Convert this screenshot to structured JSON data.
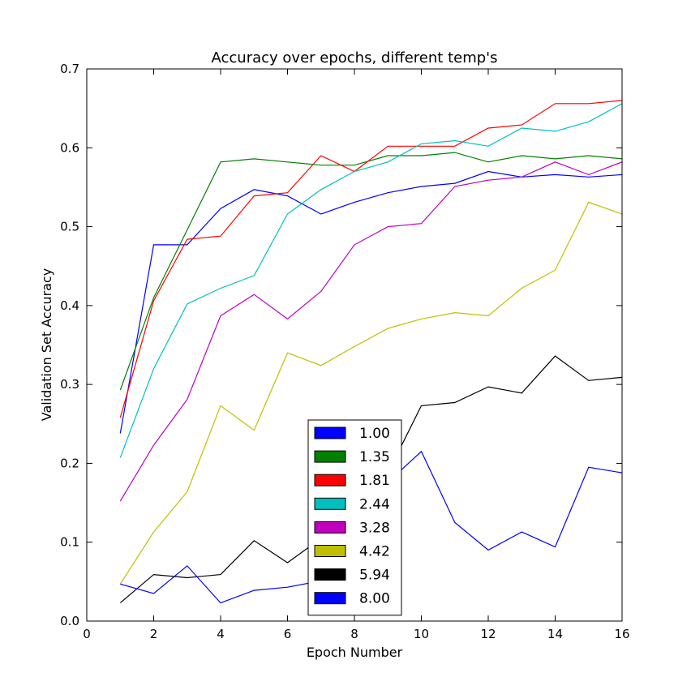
{
  "chart_data": {
    "type": "line",
    "title": "Accuracy over epochs, different temp's",
    "xlabel": "Epoch Number",
    "ylabel": "Validation Set Accuracy",
    "xlim": [
      0,
      16
    ],
    "ylim": [
      0.0,
      0.7
    ],
    "xticks": [
      "0",
      "2",
      "4",
      "6",
      "8",
      "10",
      "12",
      "14",
      "16"
    ],
    "yticks": [
      "0.0",
      "0.1",
      "0.2",
      "0.3",
      "0.4",
      "0.5",
      "0.6",
      "0.7"
    ],
    "grid": false,
    "legend_position": "lower-center",
    "x": [
      1,
      2,
      3,
      4,
      5,
      6,
      7,
      8,
      9,
      10,
      11,
      12,
      13,
      14,
      15,
      16
    ],
    "series": [
      {
        "name": "1.00",
        "color": "#0000ff",
        "values": [
          0.238,
          0.477,
          0.477,
          0.523,
          0.547,
          0.539,
          0.516,
          0.531,
          0.543,
          0.551,
          0.555,
          0.57,
          0.563,
          0.566,
          0.563,
          0.566
        ]
      },
      {
        "name": "1.35",
        "color": "#008000",
        "values": [
          0.293,
          0.41,
          0.496,
          0.582,
          0.586,
          0.582,
          0.578,
          0.578,
          0.59,
          0.59,
          0.594,
          0.582,
          0.59,
          0.586,
          0.59,
          0.586
        ]
      },
      {
        "name": "1.81",
        "color": "#ff0000",
        "values": [
          0.258,
          0.406,
          0.484,
          0.488,
          0.539,
          0.543,
          0.59,
          0.57,
          0.602,
          0.602,
          0.602,
          0.625,
          0.629,
          0.656,
          0.656,
          0.66
        ]
      },
      {
        "name": "2.44",
        "color": "#00bfbf",
        "values": [
          0.207,
          0.32,
          0.402,
          0.422,
          0.438,
          0.516,
          0.547,
          0.57,
          0.582,
          0.605,
          0.609,
          0.602,
          0.625,
          0.621,
          0.633,
          0.656
        ]
      },
      {
        "name": "3.28",
        "color": "#bf00bf",
        "values": [
          0.152,
          0.223,
          0.281,
          0.387,
          0.414,
          0.383,
          0.418,
          0.477,
          0.5,
          0.504,
          0.551,
          0.559,
          0.563,
          0.582,
          0.566,
          0.582
        ]
      },
      {
        "name": "4.42",
        "color": "#bfbf00",
        "values": [
          0.047,
          0.113,
          0.164,
          0.273,
          0.242,
          0.34,
          0.324,
          0.348,
          0.371,
          0.383,
          0.391,
          0.387,
          0.422,
          0.445,
          0.531,
          0.516
        ]
      },
      {
        "name": "5.94",
        "color": "#000000",
        "values": [
          0.023,
          0.059,
          0.055,
          0.059,
          0.102,
          0.074,
          0.105,
          0.145,
          0.188,
          0.273,
          0.277,
          0.297,
          0.289,
          0.336,
          0.305,
          0.309
        ]
      },
      {
        "name": "8.00",
        "color": "#0000ff",
        "values": [
          0.047,
          0.035,
          0.07,
          0.023,
          0.039,
          0.043,
          0.051,
          0.098,
          0.176,
          0.215,
          0.125,
          0.09,
          0.113,
          0.094,
          0.195,
          0.188
        ]
      }
    ]
  }
}
